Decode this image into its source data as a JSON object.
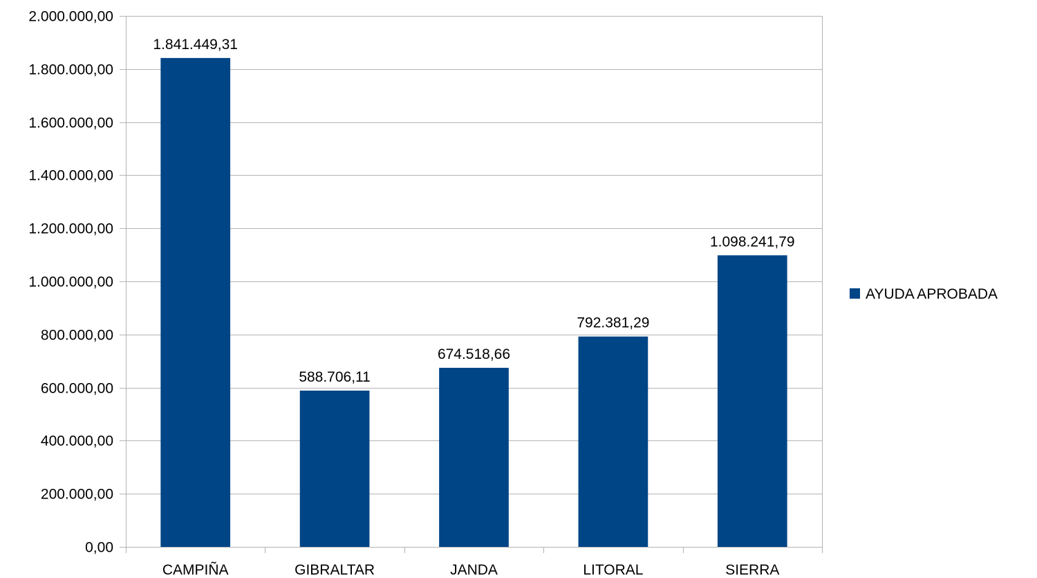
{
  "chart_data": {
    "type": "bar",
    "categories": [
      "CAMPIÑA",
      "GIBRALTAR",
      "JANDA",
      "LITORAL",
      "SIERRA"
    ],
    "series": [
      {
        "name": "AYUDA APROBADA",
        "values": [
          1841449.31,
          588706.11,
          674518.66,
          792381.29,
          1098241.79
        ],
        "value_labels": [
          "1.841.449,31",
          "588.706,11",
          "674.518,66",
          "792.381,29",
          "1.098.241,79"
        ]
      }
    ],
    "ylim": [
      0,
      2000000
    ],
    "yticks": [
      0,
      200000,
      400000,
      600000,
      800000,
      1000000,
      1200000,
      1400000,
      1600000,
      1800000,
      2000000
    ],
    "ytick_labels": [
      "0,00",
      "200.000,00",
      "400.000,00",
      "600.000,00",
      "800.000,00",
      "1.000.000,00",
      "1.200.000,00",
      "1.400.000,00",
      "1.600.000,00",
      "1.800.000,00",
      "2.000.000,00"
    ],
    "grid": true,
    "legend_position": "right",
    "bar_color": "#004586",
    "grid_color": "#b3b3b3",
    "axis_color": "#b3b3b3"
  }
}
